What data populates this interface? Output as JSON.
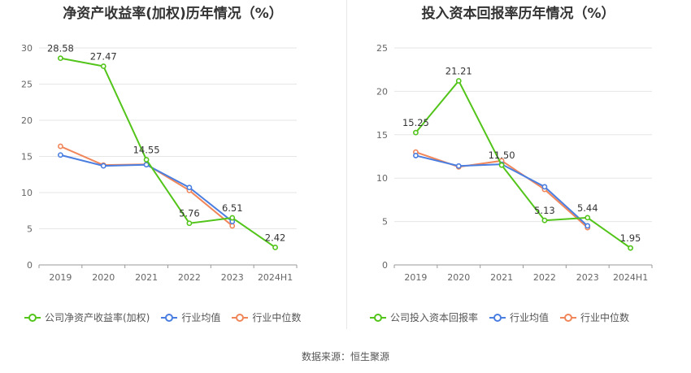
{
  "source_text": "数据来源：恒生聚源",
  "chart_data": [
    {
      "type": "line",
      "title": "净资产收益率(加权)历年情况（%）",
      "categories": [
        "2019",
        "2020",
        "2021",
        "2022",
        "2023",
        "2024H1"
      ],
      "ylim": [
        0,
        30
      ],
      "yticks": [
        0,
        5,
        10,
        15,
        20,
        25,
        30
      ],
      "grid": true,
      "legend_position": "bottom-left",
      "series": [
        {
          "name": "公司净资产收益率(加权)",
          "color": "#52c41a",
          "values": [
            28.58,
            27.47,
            14.55,
            5.76,
            6.51,
            2.42
          ],
          "labels": true
        },
        {
          "name": "行业均值",
          "color": "#4a7ee0",
          "values": [
            15.2,
            13.7,
            13.85,
            10.7,
            6.0,
            null
          ],
          "labels": false
        },
        {
          "name": "行业中位数",
          "color": "#f0865a",
          "values": [
            16.4,
            13.8,
            13.9,
            10.3,
            5.4,
            null
          ],
          "labels": false
        }
      ]
    },
    {
      "type": "line",
      "title": "投入资本回报率历年情况（%）",
      "categories": [
        "2019",
        "2020",
        "2021",
        "2022",
        "2023",
        "2024H1"
      ],
      "ylim": [
        0,
        25
      ],
      "yticks": [
        0,
        5,
        10,
        15,
        20,
        25
      ],
      "grid": true,
      "legend_position": "bottom-left",
      "series": [
        {
          "name": "公司投入资本回报率",
          "color": "#52c41a",
          "values": [
            15.25,
            21.21,
            11.5,
            5.13,
            5.44,
            1.95
          ],
          "labels": true
        },
        {
          "name": "行业均值",
          "color": "#4a7ee0",
          "values": [
            12.6,
            11.4,
            11.6,
            9.0,
            4.5,
            null
          ],
          "labels": false
        },
        {
          "name": "行业中位数",
          "color": "#f0865a",
          "values": [
            13.0,
            11.3,
            12.0,
            8.7,
            4.3,
            null
          ],
          "labels": false
        }
      ]
    }
  ]
}
